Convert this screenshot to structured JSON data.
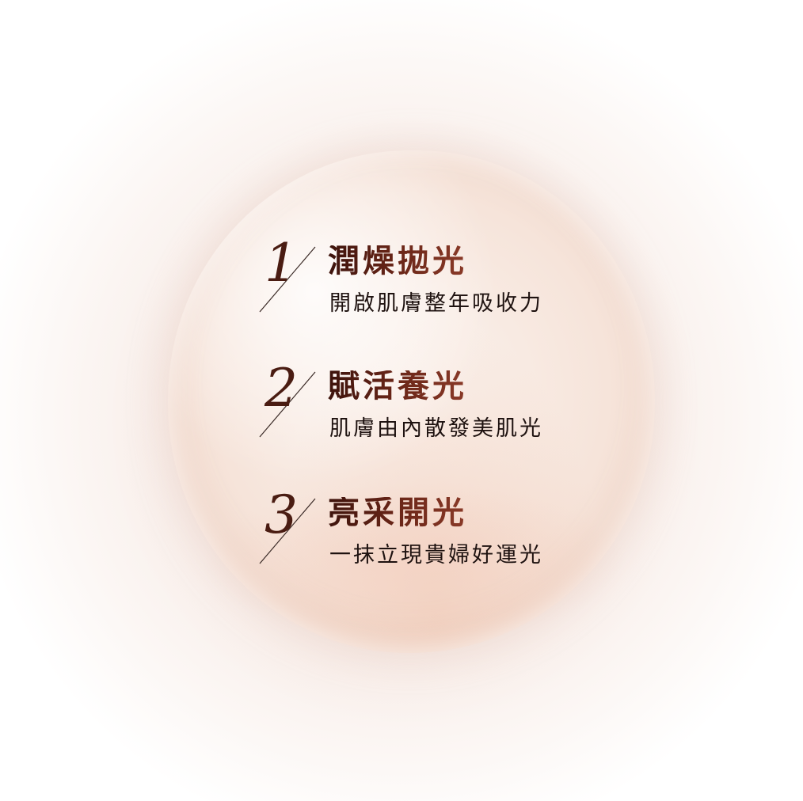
{
  "items": [
    {
      "number": "1",
      "title": "潤燥拋光",
      "subtitle": "開啟肌膚整年吸收力"
    },
    {
      "number": "2",
      "title": "賦活養光",
      "subtitle": "肌膚由內散發美肌光"
    },
    {
      "number": "3",
      "title": "亮采開光",
      "subtitle": "一抹立現貴婦好運光"
    }
  ],
  "colors": {
    "number": "#4a1c12",
    "title": "#5b2116",
    "subtitle": "#1e1210",
    "droplet": "#f6e4da"
  }
}
